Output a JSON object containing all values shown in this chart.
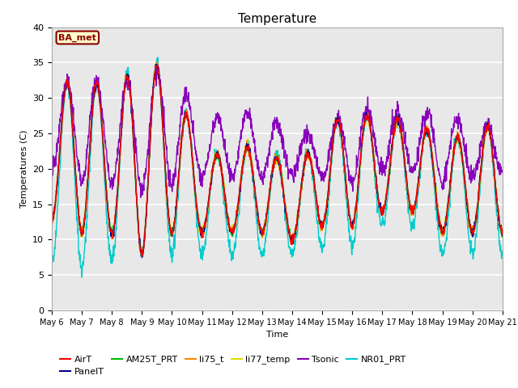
{
  "title": "Temperature",
  "ylabel": "Temperatures (C)",
  "xlabel": "Time",
  "ylim": [
    0,
    40
  ],
  "yticks": [
    0,
    5,
    10,
    15,
    20,
    25,
    30,
    35,
    40
  ],
  "annotation_text": "BA_met",
  "annotation_color": "#8B0000",
  "annotation_bg": "#FFFFCC",
  "series_order": [
    "NR01_PRT",
    "li77_temp",
    "li75_t",
    "AM25T_PRT",
    "Tsonic",
    "PanelT",
    "AirT"
  ],
  "series": {
    "AirT": {
      "color": "#FF0000",
      "lw": 1.0
    },
    "PanelT": {
      "color": "#00008B",
      "lw": 1.0
    },
    "AM25T_PRT": {
      "color": "#00BB00",
      "lw": 1.0
    },
    "li75_t": {
      "color": "#FF8800",
      "lw": 1.0
    },
    "li77_temp": {
      "color": "#DDDD00",
      "lw": 1.0
    },
    "Tsonic": {
      "color": "#8800BB",
      "lw": 1.0
    },
    "NR01_PRT": {
      "color": "#00CCCC",
      "lw": 1.0
    }
  },
  "legend_order": [
    "AirT",
    "PanelT",
    "AM25T_PRT",
    "li75_t",
    "li77_temp",
    "Tsonic",
    "NR01_PRT"
  ],
  "x_tick_labels": [
    "May 6",
    "May 7",
    "May 8",
    "May 9",
    "May 10",
    "May 11",
    "May 12",
    "May 13",
    "May 14",
    "May 15",
    "May 16",
    "May 17",
    "May 18",
    "May 19",
    "May 20",
    "May 21"
  ],
  "n_days": 15,
  "pts_per_day": 96,
  "background_color": "#E8E8E8",
  "figure_bg": "#FFFFFF",
  "grid_color": "#FFFFFF",
  "legend_fontsize": 8,
  "title_fontsize": 11,
  "figsize": [
    6.4,
    4.8
  ],
  "dpi": 100
}
